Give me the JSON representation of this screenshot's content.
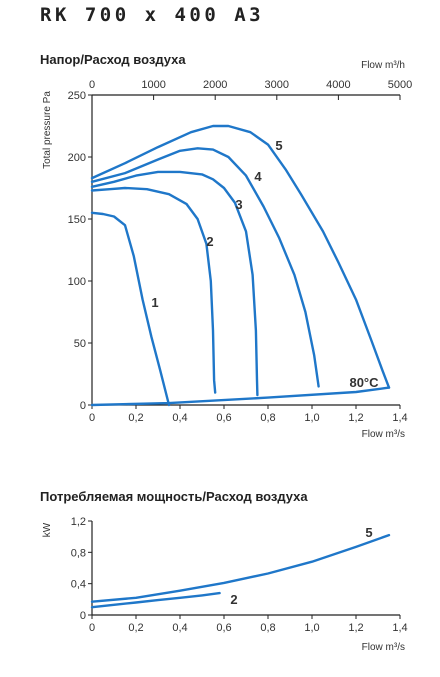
{
  "page_title": "RK 700 x 400 A3",
  "chart_data": [
    {
      "type": "line",
      "title": "Напор/Расход воздуха",
      "xlabel": "Flow m³/s",
      "x2label": "Flow m³/h",
      "ylabel": "Total pressure Pa",
      "xlim": [
        0,
        1.4
      ],
      "ylim": [
        0,
        250
      ],
      "x2lim": [
        0,
        5000
      ],
      "x_ticks": [
        "0",
        "0,2",
        "0,4",
        "0,6",
        "0,8",
        "1,0",
        "1,2",
        "1,4"
      ],
      "x2_ticks": [
        "0",
        "1000",
        "2000",
        "3000",
        "4000",
        "5000"
      ],
      "y_ticks": [
        "0",
        "50",
        "100",
        "150",
        "200",
        "250"
      ],
      "annotation": "80°C",
      "series": [
        {
          "name": "1",
          "points": [
            [
              0,
              155
            ],
            [
              0.05,
              154
            ],
            [
              0.1,
              152
            ],
            [
              0.15,
              145
            ],
            [
              0.19,
              120
            ],
            [
              0.23,
              85
            ],
            [
              0.27,
              55
            ],
            [
              0.31,
              28
            ],
            [
              0.35,
              0
            ]
          ]
        },
        {
          "name": "2",
          "points": [
            [
              0,
              173
            ],
            [
              0.08,
              174
            ],
            [
              0.15,
              175
            ],
            [
              0.25,
              174
            ],
            [
              0.35,
              170
            ],
            [
              0.43,
              162
            ],
            [
              0.48,
              150
            ],
            [
              0.52,
              130
            ],
            [
              0.54,
              100
            ],
            [
              0.55,
              60
            ],
            [
              0.555,
              20
            ],
            [
              0.56,
              10
            ]
          ]
        },
        {
          "name": "3",
          "points": [
            [
              0,
              176
            ],
            [
              0.1,
              180
            ],
            [
              0.2,
              185
            ],
            [
              0.3,
              188
            ],
            [
              0.4,
              188
            ],
            [
              0.5,
              186
            ],
            [
              0.55,
              182
            ],
            [
              0.6,
              175
            ],
            [
              0.65,
              163
            ],
            [
              0.7,
              140
            ],
            [
              0.73,
              105
            ],
            [
              0.745,
              60
            ],
            [
              0.75,
              20
            ],
            [
              0.752,
              8
            ]
          ]
        },
        {
          "name": "4",
          "points": [
            [
              0,
              180
            ],
            [
              0.15,
              187
            ],
            [
              0.3,
              198
            ],
            [
              0.4,
              205
            ],
            [
              0.48,
              207
            ],
            [
              0.55,
              206
            ],
            [
              0.62,
              200
            ],
            [
              0.7,
              185
            ],
            [
              0.78,
              160
            ],
            [
              0.85,
              135
            ],
            [
              0.92,
              105
            ],
            [
              0.97,
              75
            ],
            [
              1.01,
              40
            ],
            [
              1.03,
              15
            ]
          ]
        },
        {
          "name": "5",
          "points": [
            [
              0,
              183
            ],
            [
              0.15,
              195
            ],
            [
              0.3,
              208
            ],
            [
              0.45,
              220
            ],
            [
              0.55,
              225
            ],
            [
              0.62,
              225
            ],
            [
              0.72,
              220
            ],
            [
              0.8,
              210
            ],
            [
              0.88,
              190
            ],
            [
              0.95,
              170
            ],
            [
              1.05,
              140
            ],
            [
              1.12,
              115
            ],
            [
              1.2,
              85
            ],
            [
              1.27,
              52
            ],
            [
              1.32,
              28
            ],
            [
              1.35,
              14
            ]
          ]
        },
        {
          "name": "80°C",
          "points": [
            [
              0,
              0
            ],
            [
              0.35,
              1.5
            ],
            [
              0.8,
              6
            ],
            [
              1.2,
              10.5
            ],
            [
              1.35,
              14
            ]
          ]
        }
      ]
    },
    {
      "type": "line",
      "title": "Потребляемая мощность/Расход воздуха",
      "xlabel": "Flow m³/s",
      "ylabel": "kW",
      "xlim": [
        0,
        1.4
      ],
      "ylim": [
        0,
        1.2
      ],
      "x_ticks": [
        "0",
        "0,2",
        "0,4",
        "0,6",
        "0,8",
        "1,0",
        "1,2",
        "1,4"
      ],
      "y_ticks": [
        "0",
        "0,4",
        "0,8",
        "1,2"
      ],
      "series": [
        {
          "name": "2",
          "points": [
            [
              0,
              0.1
            ],
            [
              0.1,
              0.13
            ],
            [
              0.2,
              0.16
            ],
            [
              0.3,
              0.19
            ],
            [
              0.4,
              0.22
            ],
            [
              0.5,
              0.25
            ],
            [
              0.58,
              0.28
            ]
          ]
        },
        {
          "name": "5",
          "points": [
            [
              0,
              0.17
            ],
            [
              0.2,
              0.22
            ],
            [
              0.4,
              0.31
            ],
            [
              0.6,
              0.41
            ],
            [
              0.8,
              0.53
            ],
            [
              1.0,
              0.68
            ],
            [
              1.2,
              0.87
            ],
            [
              1.35,
              1.02
            ]
          ]
        }
      ]
    }
  ]
}
